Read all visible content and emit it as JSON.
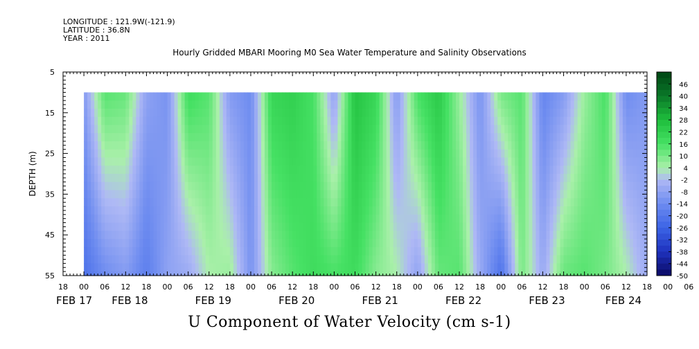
{
  "header": {
    "longitude": "LONGITUDE : 121.9W(-121.9)",
    "latitude": "LATITUDE : 36.8N",
    "year": "YEAR : 2011"
  },
  "chart_data": {
    "type": "heatmap",
    "title": "Hourly Gridded MBARI Mooring M0 Sea Water Temperature and Salinity Observations",
    "xlabel": "U Component of Water Velocity (cm s-1)",
    "ylabel": "DEPTH (m)",
    "x_start_label": "FEB 17 18:00",
    "x_hour_ticks": [
      "18",
      "00",
      "06",
      "12",
      "18",
      "00",
      "06",
      "12",
      "18",
      "00",
      "06",
      "12",
      "18",
      "00",
      "06",
      "12",
      "18",
      "00",
      "06",
      "12",
      "18",
      "00",
      "06",
      "12",
      "18",
      "00",
      "06",
      "12",
      "18",
      "00",
      "06",
      "12",
      "18"
    ],
    "x_day_labels": [
      {
        "label": "FEB 17",
        "hours_from_start": -2
      },
      {
        "label": "FEB 18",
        "hours_from_start": 14
      },
      {
        "label": "FEB 19",
        "hours_from_start": 38
      },
      {
        "label": "FEB 20",
        "hours_from_start": 62
      },
      {
        "label": "FEB 21",
        "hours_from_start": 86
      },
      {
        "label": "FEB 22",
        "hours_from_start": 110
      },
      {
        "label": "FEB 23",
        "hours_from_start": 134
      },
      {
        "label": "FEB 24",
        "hours_from_start": 156
      }
    ],
    "x_range_hours": [
      0,
      168
    ],
    "data_start_hour": 6,
    "ylim": [
      5,
      55
    ],
    "y_ticks": [
      "5",
      "15",
      "25",
      "35",
      "45",
      "55"
    ],
    "depth_top_of_data": 10,
    "colorbar_levels": [
      "46",
      "40",
      "34",
      "28",
      "22",
      "16",
      "10",
      "4",
      "-2",
      "-8",
      "-14",
      "-20",
      "-26",
      "-32",
      "-38",
      "-44",
      "-50"
    ],
    "colorbar_range": [
      -50,
      52
    ],
    "colorbar_step": 3,
    "u_profile_by_hour": [
      {
        "hour": 6,
        "surface": -10,
        "bottom": -22
      },
      {
        "hour": 12,
        "surface": 14,
        "bottom": -14
      },
      {
        "hour": 18,
        "surface": 12,
        "bottom": -10
      },
      {
        "hour": 24,
        "surface": -8,
        "bottom": -18
      },
      {
        "hour": 30,
        "surface": -12,
        "bottom": -8
      },
      {
        "hour": 36,
        "surface": 18,
        "bottom": -6
      },
      {
        "hour": 42,
        "surface": 14,
        "bottom": 4
      },
      {
        "hour": 48,
        "surface": -10,
        "bottom": 6
      },
      {
        "hour": 54,
        "surface": -14,
        "bottom": -12
      },
      {
        "hour": 60,
        "surface": 20,
        "bottom": 8
      },
      {
        "hour": 66,
        "surface": 22,
        "bottom": 14
      },
      {
        "hour": 72,
        "surface": 16,
        "bottom": 18
      },
      {
        "hour": 78,
        "surface": -8,
        "bottom": 16
      },
      {
        "hour": 84,
        "surface": 26,
        "bottom": 18
      },
      {
        "hour": 90,
        "surface": 20,
        "bottom": 8
      },
      {
        "hour": 96,
        "surface": -10,
        "bottom": 4
      },
      {
        "hour": 102,
        "surface": 16,
        "bottom": -8
      },
      {
        "hour": 108,
        "surface": 24,
        "bottom": 12
      },
      {
        "hour": 114,
        "surface": 6,
        "bottom": 14
      },
      {
        "hour": 120,
        "surface": -12,
        "bottom": -6
      },
      {
        "hour": 126,
        "surface": 10,
        "bottom": -22
      },
      {
        "hour": 132,
        "surface": 14,
        "bottom": 10
      },
      {
        "hour": 138,
        "surface": -16,
        "bottom": -6
      },
      {
        "hour": 144,
        "surface": -10,
        "bottom": 12
      },
      {
        "hour": 150,
        "surface": 6,
        "bottom": 14
      },
      {
        "hour": 156,
        "surface": 16,
        "bottom": 10
      },
      {
        "hour": 162,
        "surface": -14,
        "bottom": 4
      },
      {
        "hour": 168,
        "surface": -10,
        "bottom": -6
      }
    ],
    "depth_levels": [
      10,
      12,
      14,
      16,
      18,
      20,
      22,
      24,
      26,
      28,
      30,
      32,
      34,
      36,
      38,
      40,
      42,
      44,
      46,
      48,
      50,
      52,
      54,
      55
    ]
  }
}
